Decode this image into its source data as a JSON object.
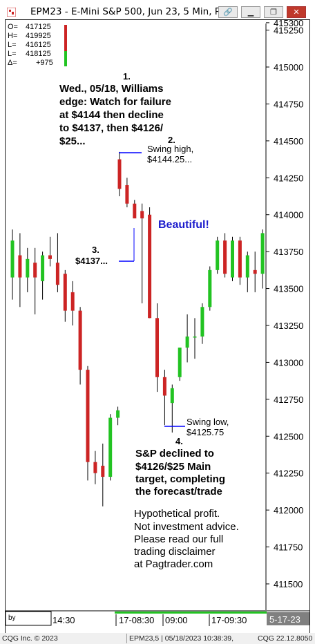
{
  "window": {
    "title": "EPM23 - E-Mini S&P 500, Jun 23, 5 Min, P",
    "buttons": [
      {
        "name": "link-icon",
        "glyph": "🔗"
      },
      {
        "name": "minimize-icon",
        "glyph": "▁"
      },
      {
        "name": "restore-icon",
        "glyph": "❐"
      },
      {
        "name": "close-icon",
        "glyph": "✕"
      }
    ]
  },
  "ohlc_box": {
    "lines": [
      {
        "label": "O=",
        "value": "417125"
      },
      {
        "label": "H=",
        "value": "419925"
      },
      {
        "label": "L=",
        "value": "416125"
      },
      {
        "label": "L=",
        "value": "418125"
      },
      {
        "label": "Δ=",
        "value": "+975"
      }
    ]
  },
  "annotations": {
    "a1_num": "1.",
    "a1_text": [
      "Wed., 05/18, Williams",
      "edge: Watch for failure",
      "at $4144 then decline",
      "to $4137, then $4126/",
      "$25..."
    ],
    "a2_num": "2.",
    "a2_text": [
      "Swing high,",
      "$4144.25..."
    ],
    "a3_num": "3.",
    "a3_text": "$4137...",
    "beautiful": "Beautiful!",
    "swing_low": [
      "Swing low,",
      "$4125.75"
    ],
    "a4_num": "4.",
    "a4_text": [
      "S&P declined to",
      "$4126/$25 Main",
      "target, completing",
      "the forecast/trade"
    ],
    "disclaimer": [
      "Hypothetical profit.",
      "Not investment advice.",
      "Please read our full",
      "trading disclaimer",
      "at Pagtrader.com"
    ]
  },
  "time_axis": {
    "input_label": "by",
    "labels": [
      "14:30",
      "17-08:30",
      "09:00",
      "17-09:30"
    ],
    "date_badge": "5-17-23"
  },
  "status_bar": {
    "left": "CQG Inc. © 2023",
    "middle": "EPM23,5 | 05/18/2023 10:38:39,",
    "right": "CQG 22.12.8050"
  },
  "colors": {
    "up": "#22c322",
    "down": "#cc2424",
    "accent": "#0000ff",
    "beautiful": "#1a1acc"
  },
  "chart_data": {
    "type": "candlestick",
    "ylim": [
      4114.75,
      4153.0
    ],
    "yticks": [
      "415300",
      "415250",
      "415000",
      "414750",
      "414500",
      "414250",
      "414000",
      "413750",
      "413500",
      "413250",
      "413000",
      "412750",
      "412500",
      "412250",
      "412000",
      "411750",
      "411500"
    ],
    "ytick_values": [
      4153.0,
      4152.5,
      4150.0,
      4147.5,
      4145.0,
      4142.5,
      4140.0,
      4137.5,
      4135.0,
      4132.5,
      4130.0,
      4127.5,
      4125.0,
      4122.5,
      4120.0,
      4117.5,
      4115.0
    ],
    "candles": [
      {
        "o": 4135.75,
        "h": 4139.0,
        "l": 4134.25,
        "c": 4138.25
      },
      {
        "o": 4137.25,
        "h": 4138.75,
        "l": 4133.75,
        "c": 4135.75
      },
      {
        "o": 4135.75,
        "h": 4137.75,
        "l": 4134.75,
        "c": 4137.0
      },
      {
        "o": 4136.75,
        "h": 4137.75,
        "l": 4133.25,
        "c": 4135.75
      },
      {
        "o": 4135.5,
        "h": 4137.5,
        "l": 4134.25,
        "c": 4137.25
      },
      {
        "o": 4137.25,
        "h": 4138.5,
        "l": 4136.5,
        "c": 4137.0
      },
      {
        "o": 4136.75,
        "h": 4138.75,
        "l": 4134.75,
        "c": 4135.25
      },
      {
        "o": 4136.0,
        "h": 4136.25,
        "l": 4132.75,
        "c": 4133.5
      },
      {
        "o": 4134.75,
        "h": 4135.5,
        "l": 4132.5,
        "c": 4133.5
      },
      {
        "o": 4133.5,
        "h": 4133.75,
        "l": 4128.5,
        "c": 4129.5
      },
      {
        "o": 4129.5,
        "h": 4129.75,
        "l": 4122.0,
        "c": 4123.25
      },
      {
        "o": 4123.25,
        "h": 4124.0,
        "l": 4121.75,
        "c": 4122.5
      },
      {
        "o": 4123.0,
        "h": 4124.5,
        "l": 4120.25,
        "c": 4122.25
      },
      {
        "o": 4122.25,
        "h": 4126.5,
        "l": 4122.0,
        "c": 4126.25
      },
      {
        "o": 4126.25,
        "h": 4127.0,
        "l": 4125.75,
        "c": 4126.75
      },
      {
        "o": 4143.75,
        "h": 4144.25,
        "l": 4141.25,
        "c": 4141.75
      },
      {
        "o": 4142.0,
        "h": 4142.5,
        "l": 4140.5,
        "c": 4140.75
      },
      {
        "o": 4140.75,
        "h": 4141.0,
        "l": 4139.75,
        "c": 4139.75
      },
      {
        "o": 4140.25,
        "h": 4140.75,
        "l": 4134.0,
        "c": 4139.75
      },
      {
        "o": 4140.0,
        "h": 4140.5,
        "l": 4133.0,
        "c": 4133.0
      },
      {
        "o": 4133.0,
        "h": 4134.0,
        "l": 4128.0,
        "c": 4129.0
      },
      {
        "o": 4129.0,
        "h": 4129.5,
        "l": 4125.75,
        "c": 4127.75
      },
      {
        "o": 4127.25,
        "h": 4128.5,
        "l": 4125.25,
        "c": 4128.25
      },
      {
        "o": 4129.0,
        "h": 4131.0,
        "l": 4128.75,
        "c": 4131.0
      },
      {
        "o": 4131.0,
        "h": 4133.25,
        "l": 4130.0,
        "c": 4131.75
      },
      {
        "o": 4131.75,
        "h": 4133.0,
        "l": 4130.25,
        "c": 4131.75
      },
      {
        "o": 4131.75,
        "h": 4134.0,
        "l": 4131.25,
        "c": 4133.75
      },
      {
        "o": 4133.75,
        "h": 4136.5,
        "l": 4133.5,
        "c": 4136.25
      },
      {
        "o": 4136.25,
        "h": 4138.5,
        "l": 4136.0,
        "c": 4138.25
      },
      {
        "o": 4138.25,
        "h": 4138.75,
        "l": 4135.75,
        "c": 4136.0
      },
      {
        "o": 4135.75,
        "h": 4138.5,
        "l": 4135.5,
        "c": 4138.25
      },
      {
        "o": 4138.25,
        "h": 4138.5,
        "l": 4135.25,
        "c": 4135.75
      },
      {
        "o": 4135.75,
        "h": 4137.5,
        "l": 4134.75,
        "c": 4137.25
      },
      {
        "o": 4136.25,
        "h": 4137.5,
        "l": 4134.75,
        "c": 4136.0
      },
      {
        "o": 4136.0,
        "h": 4139.0,
        "l": 4135.0,
        "c": 4138.75
      }
    ],
    "markers": [
      {
        "label": "swing-high",
        "price": 4144.25
      },
      {
        "label": "target-4137",
        "price": 4137.0
      },
      {
        "label": "swing-low",
        "price": 4125.75
      }
    ]
  }
}
